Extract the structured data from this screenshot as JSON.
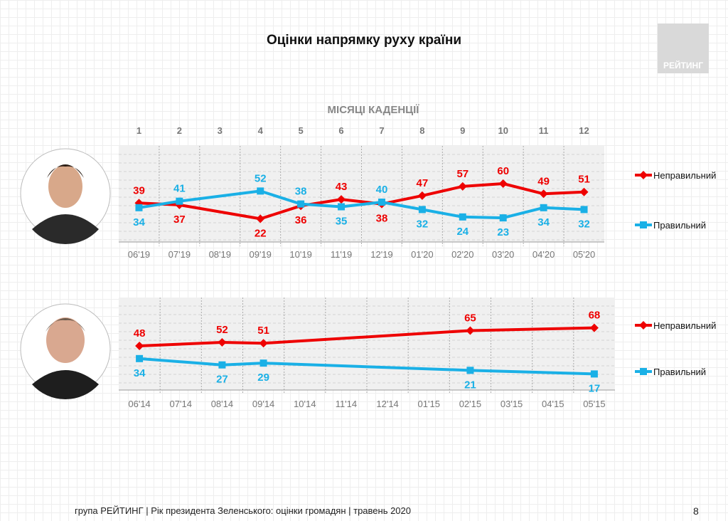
{
  "title": "Оцінки напрямку руху країни",
  "logo_text": "РЕЙТИНГ",
  "footer": "група РЕЙТИНГ |  Рік президента Зеленського: оцінки громадян | травень 2020",
  "page_number": "8",
  "colors": {
    "wrong": "#ee0000",
    "right": "#1ab0e6"
  },
  "chart_data": [
    {
      "type": "line",
      "top_axis_label": "МІСЯЦІ КАДЕНЦІЇ",
      "top_categories": [
        "1",
        "2",
        "3",
        "4",
        "5",
        "6",
        "7",
        "8",
        "9",
        "10",
        "11",
        "12"
      ],
      "categories": [
        "06'19",
        "07'19",
        "08'19",
        "09'19",
        "10'19",
        "11'19",
        "12'19",
        "01'20",
        "02'20",
        "03'20",
        "04'20",
        "05'20"
      ],
      "series": [
        {
          "name": "Неправильний",
          "color": "#ee0000",
          "marker": "diamond",
          "values": [
            39,
            37,
            null,
            22,
            36,
            43,
            38,
            47,
            57,
            60,
            49,
            51
          ]
        },
        {
          "name": "Правильний",
          "color": "#1ab0e6",
          "marker": "square",
          "values": [
            34,
            41,
            null,
            52,
            38,
            35,
            40,
            32,
            24,
            23,
            34,
            32
          ]
        }
      ],
      "legend": "right",
      "grid": true
    },
    {
      "type": "line",
      "categories": [
        "06'14",
        "07'14",
        "08'14",
        "09'14",
        "10'14",
        "11'14",
        "12'14",
        "01'15",
        "02'15",
        "03'15",
        "04'15",
        "05'15"
      ],
      "series": [
        {
          "name": "Неправильний",
          "color": "#ee0000",
          "marker": "diamond",
          "values": [
            48,
            null,
            52,
            51,
            null,
            null,
            null,
            null,
            65,
            null,
            null,
            68
          ]
        },
        {
          "name": "Правильний",
          "color": "#1ab0e6",
          "marker": "square",
          "values": [
            34,
            null,
            27,
            29,
            null,
            null,
            null,
            null,
            21,
            null,
            null,
            17
          ]
        }
      ],
      "legend": "right",
      "grid": true
    }
  ]
}
